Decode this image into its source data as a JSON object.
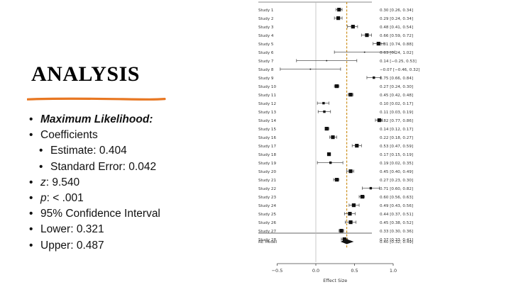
{
  "slide": {
    "title": "ANALYSIS",
    "accent_color": "#e87722",
    "bullets": {
      "method": "Maximum Likelihood:",
      "coefficients": "Coefficients",
      "estimate": "Estimate: 0.404",
      "se": "Standard Error: 0.042",
      "z_label": "z",
      "z_value": ": 9.540",
      "p_label": "p",
      "p_value": ": < .001",
      "ci": "95% Confidence Interval",
      "lower": "Lower: 0.321",
      "upper": "Upper: 0.487"
    }
  },
  "chart_data": {
    "type": "forest",
    "xlabel": "Effect Size",
    "xlim": [
      -0.5,
      1.0
    ],
    "xticks": [
      "−0.5",
      "0.0",
      "0.5",
      "1.0"
    ],
    "tick_values": [
      -0.5,
      0.0,
      0.5,
      1.0
    ],
    "reference_line": 0.0,
    "summary_line": 0.4,
    "summary_line_color": "#c8860a",
    "studies": [
      {
        "label": "Study 1",
        "est": 0.3,
        "lo": 0.26,
        "hi": 0.34,
        "text": "0.30 [0.26, 0.34]"
      },
      {
        "label": "Study 2",
        "est": 0.29,
        "lo": 0.24,
        "hi": 0.34,
        "text": "0.29 [0.24, 0.34]"
      },
      {
        "label": "Study 3",
        "est": 0.48,
        "lo": 0.41,
        "hi": 0.54,
        "text": "0.48 [0.41, 0.54]"
      },
      {
        "label": "Study 4",
        "est": 0.66,
        "lo": 0.59,
        "hi": 0.72,
        "text": "0.66 [0.59, 0.72]"
      },
      {
        "label": "Study 5",
        "est": 0.81,
        "lo": 0.74,
        "hi": 0.88,
        "text": "0.81 [0.74, 0.88]"
      },
      {
        "label": "Study 6",
        "est": 0.63,
        "lo": 0.24,
        "hi": 1.02,
        "text": "0.63 [0.24, 1.02]"
      },
      {
        "label": "Study 7",
        "est": 0.14,
        "lo": -0.25,
        "hi": 0.53,
        "text": "0.14 [−0.25, 0.53]"
      },
      {
        "label": "Study 8",
        "est": -0.07,
        "lo": -0.46,
        "hi": 0.32,
        "text": "−0.07 [−0.46, 0.32]"
      },
      {
        "label": "Study 9",
        "est": 0.75,
        "lo": 0.66,
        "hi": 0.84,
        "text": "0.75 [0.66, 0.84]"
      },
      {
        "label": "Study 10",
        "est": 0.27,
        "lo": 0.24,
        "hi": 0.3,
        "text": "0.27 [0.24, 0.30]"
      },
      {
        "label": "Study 11",
        "est": 0.45,
        "lo": 0.42,
        "hi": 0.48,
        "text": "0.45 [0.42, 0.48]"
      },
      {
        "label": "Study 12",
        "est": 0.1,
        "lo": 0.02,
        "hi": 0.17,
        "text": "0.10 [0.02, 0.17]"
      },
      {
        "label": "Study 13",
        "est": 0.11,
        "lo": 0.03,
        "hi": 0.19,
        "text": "0.11 [0.03, 0.19]"
      },
      {
        "label": "Study 14",
        "est": 0.82,
        "lo": 0.77,
        "hi": 0.86,
        "text": "0.82 [0.77, 0.86]"
      },
      {
        "label": "Study 15",
        "est": 0.14,
        "lo": 0.12,
        "hi": 0.17,
        "text": "0.14 [0.12, 0.17]"
      },
      {
        "label": "Study 16",
        "est": 0.22,
        "lo": 0.18,
        "hi": 0.27,
        "text": "0.22 [0.18, 0.27]"
      },
      {
        "label": "Study 17",
        "est": 0.53,
        "lo": 0.47,
        "hi": 0.59,
        "text": "0.53 [0.47, 0.59]"
      },
      {
        "label": "Study 18",
        "est": 0.17,
        "lo": 0.15,
        "hi": 0.19,
        "text": "0.17 [0.15, 0.19]"
      },
      {
        "label": "Study 19",
        "est": 0.19,
        "lo": 0.02,
        "hi": 0.35,
        "text": "0.19 [0.02, 0.35]"
      },
      {
        "label": "Study 20",
        "est": 0.45,
        "lo": 0.4,
        "hi": 0.49,
        "text": "0.45 [0.40, 0.49]"
      },
      {
        "label": "Study 21",
        "est": 0.27,
        "lo": 0.23,
        "hi": 0.3,
        "text": "0.27 [0.23, 0.30]"
      },
      {
        "label": "Study 22",
        "est": 0.71,
        "lo": 0.6,
        "hi": 0.82,
        "text": "0.71 [0.60, 0.82]"
      },
      {
        "label": "Study 23",
        "est": 0.6,
        "lo": 0.56,
        "hi": 0.63,
        "text": "0.60 [0.56, 0.63]"
      },
      {
        "label": "Study 24",
        "est": 0.49,
        "lo": 0.43,
        "hi": 0.56,
        "text": "0.49 [0.43, 0.56]"
      },
      {
        "label": "Study 25",
        "est": 0.44,
        "lo": 0.37,
        "hi": 0.51,
        "text": "0.44 [0.37, 0.51]"
      },
      {
        "label": "Study 26",
        "est": 0.45,
        "lo": 0.38,
        "hi": 0.52,
        "text": "0.45 [0.38, 0.52]"
      },
      {
        "label": "Study 27",
        "est": 0.33,
        "lo": 0.3,
        "hi": 0.36,
        "text": "0.33 [0.30, 0.36]"
      },
      {
        "label": "Study 28",
        "est": 0.37,
        "lo": 0.33,
        "hi": 0.41,
        "text": "0.37 [0.33, 0.41]"
      }
    ],
    "summary": {
      "label": "RE Model",
      "est": 0.4,
      "lo": 0.32,
      "hi": 0.49,
      "text": "0.40 [0.32, 0.49]"
    }
  }
}
